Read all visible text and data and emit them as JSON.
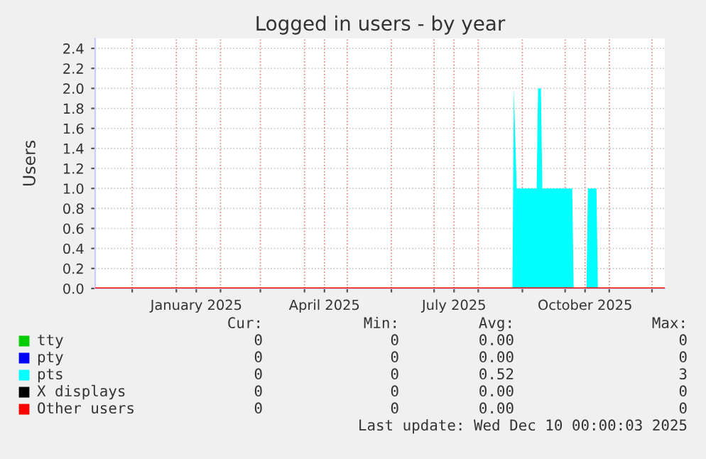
{
  "chart_data": {
    "type": "area",
    "title": "Logged in users - by year",
    "ylabel": "Users",
    "x": [
      "2024-11-05",
      "2025-08-25",
      "2025-08-26",
      "2025-08-28",
      "2025-09-11",
      "2025-09-12",
      "2025-09-14",
      "2025-09-15",
      "2025-10-06",
      "2025-10-07",
      "2025-10-16",
      "2025-10-17",
      "2025-10-23",
      "2025-10-24",
      "2025-12-10"
    ],
    "series": [
      {
        "name": "tty",
        "color": "#00cc00",
        "type": "line",
        "values": [
          null,
          null,
          null,
          null,
          null,
          null,
          null,
          null,
          null,
          null,
          null,
          null,
          null,
          null,
          null
        ]
      },
      {
        "name": "pty",
        "color": "#0000ff",
        "type": "line",
        "values": [
          null,
          null,
          null,
          null,
          null,
          null,
          null,
          null,
          null,
          null,
          null,
          null,
          null,
          null,
          null
        ]
      },
      {
        "name": "pts",
        "color": "#00ffff",
        "values": [
          0,
          0,
          2.0,
          1.0,
          1.0,
          2.0,
          2.0,
          1.0,
          1.0,
          0,
          0,
          1.0,
          1.0,
          0,
          0
        ]
      },
      {
        "name": "X displays",
        "color": "#000000",
        "type": "line",
        "values": [
          null,
          null,
          null,
          null,
          null,
          null,
          null,
          null,
          null,
          null,
          null,
          null,
          null,
          null,
          null
        ]
      },
      {
        "name": "Other users",
        "color": "#ff0000",
        "type": "line",
        "values": [
          0,
          0,
          0,
          0,
          0,
          0,
          0,
          0,
          0,
          0,
          0,
          0,
          0,
          0,
          0
        ]
      }
    ],
    "xlim": [
      "2024-11-05",
      "2025-12-10"
    ],
    "xticks": [
      {
        "value": "2024-12-01",
        "label": null
      },
      {
        "value": "2025-01-01",
        "label": null
      },
      {
        "value": "2025-01-15",
        "label": "January 2025"
      },
      {
        "value": "2025-02-01",
        "label": null
      },
      {
        "value": "2025-03-01",
        "label": null
      },
      {
        "value": "2025-04-01",
        "label": null
      },
      {
        "value": "2025-04-15",
        "label": "April 2025"
      },
      {
        "value": "2025-05-01",
        "label": null
      },
      {
        "value": "2025-06-01",
        "label": null
      },
      {
        "value": "2025-07-01",
        "label": null
      },
      {
        "value": "2025-07-15",
        "label": "July 2025"
      },
      {
        "value": "2025-08-01",
        "label": null
      },
      {
        "value": "2025-09-01",
        "label": null
      },
      {
        "value": "2025-10-01",
        "label": null
      },
      {
        "value": "2025-10-15",
        "label": "October 2025"
      },
      {
        "value": "2025-11-01",
        "label": null
      },
      {
        "value": "2025-12-01",
        "label": null
      }
    ],
    "ylim": [
      0,
      2.5
    ],
    "yticks": [
      {
        "value": 0,
        "label": "0.0"
      },
      0.2,
      0.4,
      0.6,
      0.8,
      {
        "value": 1,
        "label": "1.0"
      },
      1.2,
      1.4,
      1.6,
      1.8,
      {
        "value": 2,
        "label": "2.0"
      },
      2.2,
      2.4
    ],
    "grid": true,
    "legend": "bottom",
    "annotations": [
      "Cur:",
      "Min:",
      "Avg:",
      "Max:",
      "0",
      "0",
      "0.00",
      "0",
      "0",
      "0",
      "0.00",
      "0",
      "0",
      "0",
      "0.52",
      "3",
      "0",
      "0",
      "0.00",
      "0",
      "0",
      "0",
      "0.00",
      "0",
      "Last update: Wed Dec 10 00:00:03 2025"
    ]
  }
}
